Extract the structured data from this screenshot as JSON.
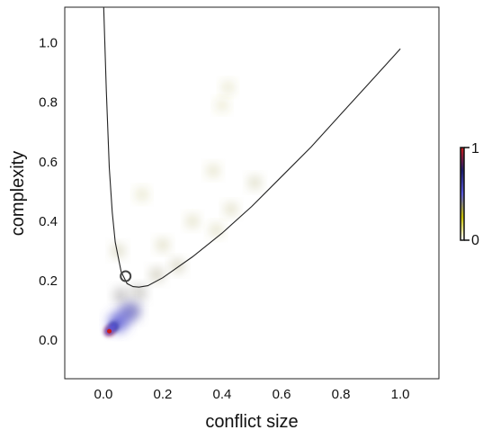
{
  "chart_data": {
    "type": "heatmap",
    "title": "",
    "xlabel": "conflict size",
    "ylabel": "complexity",
    "xlim": [
      -0.13,
      1.13
    ],
    "ylim": [
      -0.13,
      1.12
    ],
    "x_ticks": [
      "0.0",
      "0.2",
      "0.4",
      "0.6",
      "0.8",
      "1.0"
    ],
    "y_ticks": [
      "0.0",
      "0.2",
      "0.4",
      "0.6",
      "0.8",
      "1.0"
    ],
    "grid": false,
    "colorbar": {
      "min_label": "0",
      "max_label": "1",
      "colors": [
        "#ffffff",
        "#c8c000",
        "#5a5adc",
        "#1c1c6e",
        "#cc1a1a"
      ]
    },
    "density_clusters": [
      {
        "x": 0.02,
        "y": 0.03,
        "density": 1.0
      },
      {
        "x": 0.035,
        "y": 0.045,
        "density": 0.7
      },
      {
        "x": 0.05,
        "y": 0.06,
        "density": 0.45
      },
      {
        "x": 0.08,
        "y": 0.09,
        "density": 0.35
      },
      {
        "x": 0.1,
        "y": 0.1,
        "density": 0.3
      },
      {
        "x": 0.06,
        "y": 0.15,
        "density": 0.2
      },
      {
        "x": 0.12,
        "y": 0.16,
        "density": 0.18
      },
      {
        "x": 0.18,
        "y": 0.22,
        "density": 0.14
      },
      {
        "x": 0.25,
        "y": 0.25,
        "density": 0.12
      },
      {
        "x": 0.05,
        "y": 0.3,
        "density": 0.1
      },
      {
        "x": 0.2,
        "y": 0.32,
        "density": 0.08
      },
      {
        "x": 0.3,
        "y": 0.4,
        "density": 0.07
      },
      {
        "x": 0.38,
        "y": 0.37,
        "density": 0.07
      },
      {
        "x": 0.43,
        "y": 0.44,
        "density": 0.08
      },
      {
        "x": 0.51,
        "y": 0.53,
        "density": 0.09
      },
      {
        "x": 0.37,
        "y": 0.57,
        "density": 0.06
      },
      {
        "x": 0.13,
        "y": 0.49,
        "density": 0.05
      },
      {
        "x": 0.42,
        "y": 0.85,
        "density": 0.04
      },
      {
        "x": 0.4,
        "y": 0.79,
        "density": 0.03
      }
    ],
    "curve": {
      "description": "boundary line",
      "points": [
        [
          0.001,
          1.12
        ],
        [
          0.01,
          0.84
        ],
        [
          0.02,
          0.58
        ],
        [
          0.03,
          0.43
        ],
        [
          0.04,
          0.33
        ],
        [
          0.06,
          0.23
        ],
        [
          0.08,
          0.19
        ],
        [
          0.1,
          0.18
        ],
        [
          0.12,
          0.178
        ],
        [
          0.15,
          0.183
        ],
        [
          0.2,
          0.21
        ],
        [
          0.3,
          0.28
        ],
        [
          0.4,
          0.36
        ],
        [
          0.5,
          0.45
        ],
        [
          0.6,
          0.55
        ],
        [
          0.7,
          0.65
        ],
        [
          0.8,
          0.76
        ],
        [
          0.9,
          0.87
        ],
        [
          1.0,
          0.98
        ]
      ]
    },
    "marker": {
      "x": 0.075,
      "y": 0.215,
      "style": "open-circle"
    }
  }
}
